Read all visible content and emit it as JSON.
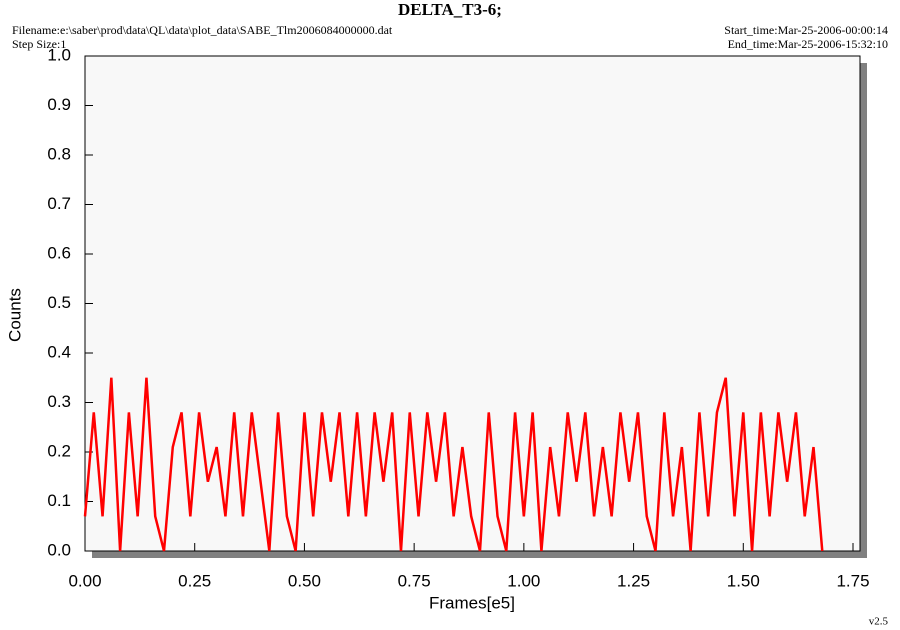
{
  "chart_data": {
    "type": "line",
    "title": "DELTA_T3-6;",
    "filename": "Filename:e:\\saber\\prod\\data\\QL\\data\\plot_data\\SABE_Tlm2006084000000.dat",
    "step_size": "Step Size:1",
    "start_time": "Start_time:Mar-25-2006-00:00:14",
    "end_time": "End_time:Mar-25-2006-15:32:10",
    "version": "v2.5",
    "x_label": "Frames[e5]",
    "y_label": "Counts",
    "xlim": [
      0,
      1.75
    ],
    "ylim": [
      0,
      1.0
    ],
    "xticks": [
      {
        "value": 0,
        "label": "0.00"
      },
      0.25,
      {
        "value": 0.5,
        "label": "0.50"
      },
      0.75,
      {
        "value": 1,
        "label": "1.00"
      },
      1.25,
      {
        "value": 1.5,
        "label": "1.50"
      },
      1.75
    ],
    "yticks": [
      {
        "value": 0,
        "label": "0.0"
      },
      0.1,
      0.2,
      0.3,
      0.4,
      0.5,
      0.6,
      0.7,
      0.8,
      0.9,
      {
        "value": 1,
        "label": "1.0"
      }
    ],
    "x": [
      0,
      0.02,
      0.04,
      0.06,
      0.08,
      0.1,
      0.12,
      0.14,
      0.16,
      0.18,
      0.2,
      0.22,
      0.24,
      0.26,
      0.28,
      0.3,
      0.32,
      0.34,
      0.36,
      0.38,
      0.4,
      0.42,
      0.44,
      0.46,
      0.48,
      0.5,
      0.52,
      0.54,
      0.56,
      0.58,
      0.6,
      0.62,
      0.64,
      0.66,
      0.68,
      0.7,
      0.72,
      0.74,
      0.76,
      0.78,
      0.8,
      0.82,
      0.84,
      0.86,
      0.88,
      0.9,
      0.92,
      0.94,
      0.96,
      0.98,
      1.0,
      1.02,
      1.04,
      1.06,
      1.08,
      1.1,
      1.12,
      1.14,
      1.16,
      1.18,
      1.2,
      1.22,
      1.24,
      1.26,
      1.28,
      1.3,
      1.32,
      1.34,
      1.36,
      1.38,
      1.4,
      1.42,
      1.44,
      1.46,
      1.48,
      1.5,
      1.52,
      1.54,
      1.56,
      1.58,
      1.6,
      1.62,
      1.64,
      1.66,
      1.68
    ],
    "series": [
      {
        "color": "#ff0000",
        "values": [
          0.07,
          0.28,
          0.07,
          0.35,
          0,
          0.28,
          0.07,
          0.35,
          0.07,
          0,
          0.21,
          0.28,
          0.07,
          0.28,
          0.14,
          0.21,
          0.07,
          0.28,
          0.07,
          0.28,
          0.14,
          0,
          0.28,
          0.07,
          0,
          0.28,
          0.07,
          0.28,
          0.14,
          0.28,
          0.07,
          0.28,
          0.07,
          0.28,
          0.14,
          0.28,
          0,
          0.28,
          0.07,
          0.28,
          0.14,
          0.28,
          0.07,
          0.21,
          0.07,
          0,
          0.28,
          0.07,
          0,
          0.28,
          0.07,
          0.28,
          0,
          0.21,
          0.07,
          0.28,
          0.14,
          0.28,
          0.07,
          0.21,
          0.07,
          0.28,
          0.14,
          0.28,
          0.07,
          0,
          0.28,
          0.07,
          0.21,
          0,
          0.28,
          0.07,
          0.28,
          0.35,
          0.07,
          0.28,
          0,
          0.28,
          0.07,
          0.28,
          0.14,
          0.28,
          0.07,
          0.21,
          0
        ]
      }
    ]
  }
}
